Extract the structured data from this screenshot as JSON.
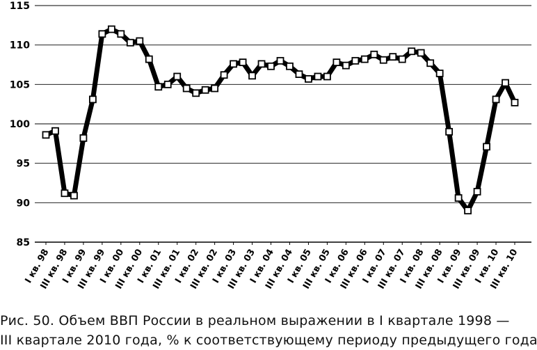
{
  "chart_data": {
    "type": "line",
    "title": "",
    "xlabel": "",
    "ylabel": "",
    "ylim": [
      85,
      115
    ],
    "yticks": [
      85,
      90,
      95,
      100,
      105,
      110,
      115
    ],
    "grid": "horizontal",
    "marker": "square",
    "line_color": "#000000",
    "x_tick_labels": [
      "I кв. 98",
      "III кв. 98",
      "I кв. 99",
      "III кв. 99",
      "I кв. 00",
      "III кв. 00",
      "I кв. 01",
      "III кв. 01",
      "I кв. 02",
      "III кв. 02",
      "I кв. 03",
      "III кв. 03",
      "I кв. 04",
      "III кв. 04",
      "I кв. 05",
      "III кв. 05",
      "I кв. 06",
      "III кв. 06",
      "I кв. 07",
      "III кв. 07",
      "I кв. 08",
      "III кв. 08",
      "I кв. 09",
      "III кв. 09",
      "I кв. 10",
      "III кв. 10"
    ],
    "x": [
      "I кв. 98",
      "II кв. 98",
      "III кв. 98",
      "IV кв. 98",
      "I кв. 99",
      "II кв. 99",
      "III кв. 99",
      "IV кв. 99",
      "I кв. 00",
      "II кв. 00",
      "III кв. 00",
      "IV кв. 00",
      "I кв. 01",
      "II кв. 01",
      "III кв. 01",
      "IV кв. 01",
      "I кв. 02",
      "II кв. 02",
      "III кв. 02",
      "IV кв. 02",
      "I кв. 03",
      "II кв. 03",
      "III кв. 03",
      "IV кв. 03",
      "I кв. 04",
      "II кв. 04",
      "III кв. 04",
      "IV кв. 04",
      "I кв. 05",
      "II кв. 05",
      "III кв. 05",
      "IV кв. 05",
      "I кв. 06",
      "II кв. 06",
      "III кв. 06",
      "IV кв. 06",
      "I кв. 07",
      "II кв. 07",
      "III кв. 07",
      "IV кв. 07",
      "I кв. 08",
      "II кв. 08",
      "III кв. 08",
      "IV кв. 08",
      "I кв. 09",
      "II кв. 09",
      "III кв. 09",
      "IV кв. 09",
      "I кв. 10",
      "II кв. 10",
      "III кв. 10"
    ],
    "series": [
      {
        "values": [
          98.6,
          99.1,
          91.2,
          90.9,
          98.2,
          103.1,
          111.4,
          112.0,
          111.4,
          110.3,
          110.5,
          108.2,
          104.7,
          105.0,
          106.0,
          104.5,
          103.9,
          104.3,
          104.5,
          106.2,
          107.6,
          107.8,
          106.1,
          107.6,
          107.3,
          108.0,
          107.3,
          106.3,
          105.7,
          106.0,
          106.0,
          107.8,
          107.4,
          108.0,
          108.2,
          108.8,
          108.1,
          108.5,
          108.2,
          109.2,
          109.0,
          107.7,
          106.4,
          99.0,
          90.6,
          89.0,
          91.4,
          97.1,
          103.1,
          105.2,
          102.7
        ]
      }
    ]
  },
  "caption": {
    "line1": "Рис. 50. Объем ВВП России в реальном выражении в I квартале 1998 —",
    "line2": "III квартале 2010 года, % к соответствующему периоду предыдущего года"
  }
}
